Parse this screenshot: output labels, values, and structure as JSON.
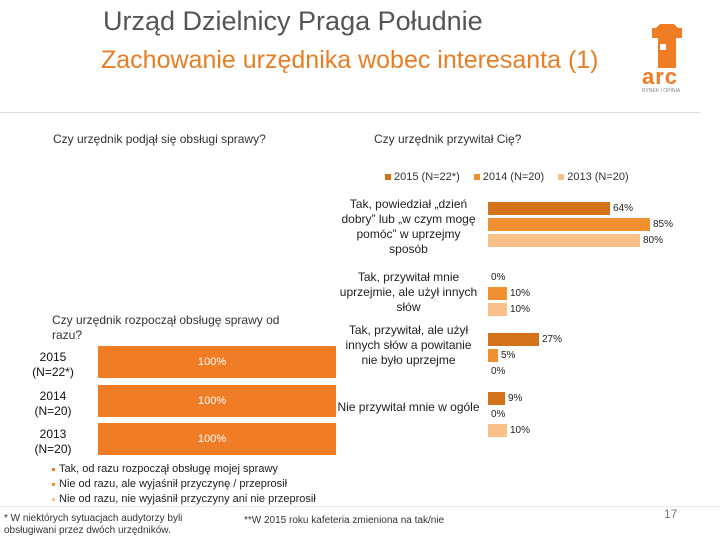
{
  "header": {
    "title": "Urząd Dzielnicy Praga Południe",
    "subtitle": "Zachowanie urzędnika wobec interesanta (1)",
    "logo_text": "arc",
    "logo_tagline": "RYNEK I OPINIA"
  },
  "questions": {
    "q1": "Czy urzędnik podjął się obsługi sprawy?",
    "q2": "Czy urzędnik przywitał Cię?",
    "q3": "Czy urzędnik rozpoczął obsługę sprawy od razu?"
  },
  "colors": {
    "s2015": "#d3721a",
    "s2014": "#f0902e",
    "s2013": "#f9c08a",
    "accent": "#e87e23"
  },
  "chart_data": [
    {
      "type": "bar",
      "orientation": "horizontal",
      "title": "Czy urzędnik przywitał Cię?",
      "categories": [
        "Tak, powiedział „dzień dobry” lub „w czym mogę pomóc” w uprzejmy sposób",
        "Tak, przywitał mnie uprzejmie, ale użył innych słów",
        "Tak, przywitał, ale użył innych słów a powitanie nie było uprzejme",
        "Nie przywitał mnie w ogóle"
      ],
      "series": [
        {
          "name": "2015 (N=22*)",
          "values": [
            64,
            0,
            27,
            9
          ]
        },
        {
          "name": "2014 (N=20)",
          "values": [
            85,
            10,
            5,
            0
          ]
        },
        {
          "name": "2013 (N=20)",
          "values": [
            80,
            10,
            0,
            10
          ]
        }
      ],
      "value_labels": [
        [
          "64%",
          "0%",
          "27%",
          "9%"
        ],
        [
          "85%",
          "10%",
          "5%",
          "0%"
        ],
        [
          "80%",
          "10%",
          "0%",
          "10%"
        ]
      ],
      "xlim": [
        0,
        100
      ],
      "unit": "%"
    },
    {
      "type": "bar",
      "orientation": "horizontal",
      "stacked": true,
      "title": "Czy urzędnik rozpoczął obsługę sprawy od razu?",
      "categories": [
        "2015 (N=22*)",
        "2014 (N=20)",
        "2013 (N=20)"
      ],
      "series": [
        {
          "name": "Tak, od razu rozpoczął obsługę mojej sprawy",
          "values": [
            100,
            100,
            100
          ]
        },
        {
          "name": "Nie od razu, ale wyjaśnił przyczynę / przeprosił",
          "values": [
            0,
            0,
            0
          ]
        },
        {
          "name": "Nie od razu, nie wyjaśnił przyczyny ani nie przeprosił",
          "values": [
            0,
            0,
            0
          ]
        }
      ],
      "value_labels": [
        "100%",
        "100%",
        "100%"
      ],
      "xlim": [
        0,
        100
      ],
      "unit": "%"
    }
  ],
  "footnotes": {
    "f1": "* W niektórych sytuacjach audytorzy byli obsługiwani przez dwóch urzędników.",
    "f2": "**W 2015 roku kafeteria zmieniona na tak/nie",
    "page": "17"
  }
}
